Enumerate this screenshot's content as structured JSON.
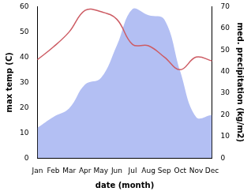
{
  "chart_data": {
    "type": "line",
    "x_label": "date (month)",
    "y_label": "max temp (C)",
    "y2_label": "med. precipitation (kg/m2)",
    "categories": [
      "Jan",
      "Feb",
      "Mar",
      "Apr",
      "May",
      "Jun",
      "Jul",
      "Aug",
      "Sep",
      "Oct",
      "Nov",
      "Dec"
    ],
    "series": [
      {
        "type": "area",
        "axis": "y2",
        "color": "#b3bff3",
        "values": [
          14,
          19,
          23,
          34,
          37,
          52,
          69,
          66,
          64,
          40,
          19,
          20
        ]
      },
      {
        "type": "line",
        "axis": "y",
        "color": "#cd5c64",
        "values": [
          39,
          44,
          50,
          58.5,
          58,
          55,
          45,
          44.5,
          40,
          35,
          40,
          38.5
        ]
      }
    ],
    "ylim": [
      0,
      60
    ],
    "yticks": [
      0,
      10,
      20,
      30,
      40,
      50,
      60
    ],
    "y2lim": [
      0,
      70
    ],
    "y2ticks": [
      0,
      10,
      20,
      30,
      40,
      50,
      60,
      70
    ],
    "grid": false
  }
}
